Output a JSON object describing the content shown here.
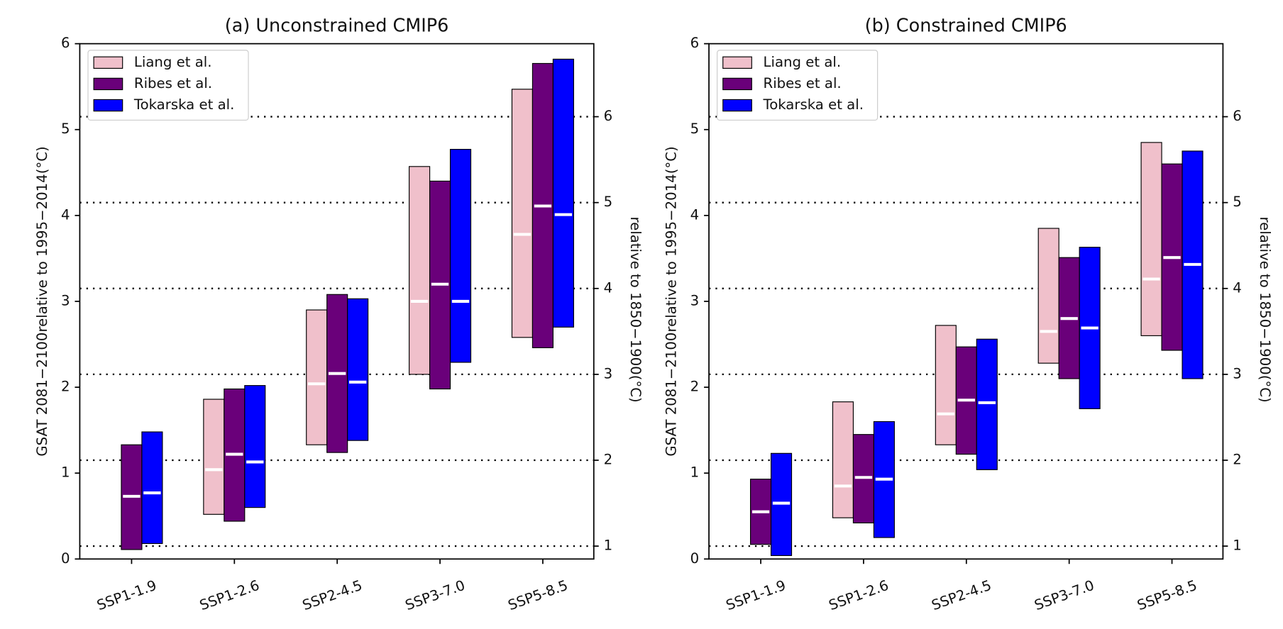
{
  "chart_data": [
    {
      "type": "range_bar",
      "title": "(a) Unconstrained CMIP6",
      "ylabel": "GSAT 2081−2100relative to 1995−2014(°C)",
      "y2label": "relative to 1850−1900(°C)",
      "categories": [
        "SSP1-1.9",
        "SSP1-2.6",
        "SSP2-4.5",
        "SSP3-7.0",
        "SSP5-8.5"
      ],
      "ylim": [
        0,
        6
      ],
      "yticks": [
        0,
        1,
        2,
        3,
        4,
        5,
        6
      ],
      "y2lim": [
        0.85,
        6.85
      ],
      "y2ticks": [
        1,
        2,
        3,
        4,
        5,
        6
      ],
      "grid": "y2",
      "legend": "upper left",
      "series": [
        {
          "name": "Liang et al.",
          "color": "#f0c0cb",
          "low": [
            null,
            0.52,
            1.33,
            2.15,
            2.58
          ],
          "high": [
            null,
            1.86,
            2.9,
            4.57,
            5.47
          ],
          "median": [
            null,
            1.04,
            2.04,
            3.0,
            3.78
          ]
        },
        {
          "name": "Ribes et al.",
          "color": "#6a007a",
          "low": [
            0.11,
            0.44,
            1.24,
            1.98,
            2.46
          ],
          "high": [
            1.33,
            1.98,
            3.08,
            4.4,
            5.77
          ],
          "median": [
            0.73,
            1.22,
            2.16,
            3.2,
            4.11
          ]
        },
        {
          "name": "Tokarska et al.",
          "color": "#0000ff",
          "low": [
            0.18,
            0.6,
            1.38,
            2.29,
            2.7
          ],
          "high": [
            1.48,
            2.02,
            3.03,
            4.77,
            5.82
          ],
          "median": [
            0.77,
            1.13,
            2.06,
            3.0,
            4.01
          ]
        }
      ]
    },
    {
      "type": "range_bar",
      "title": "(b) Constrained CMIP6",
      "ylabel": "GSAT 2081−2100relative to 1995−2014(°C)",
      "y2label": "relative to 1850−1900(°C)",
      "categories": [
        "SSP1-1.9",
        "SSP1-2.6",
        "SSP2-4.5",
        "SSP3-7.0",
        "SSP5-8.5"
      ],
      "ylim": [
        0,
        6
      ],
      "yticks": [
        0,
        1,
        2,
        3,
        4,
        5,
        6
      ],
      "y2lim": [
        0.85,
        6.85
      ],
      "y2ticks": [
        1,
        2,
        3,
        4,
        5,
        6
      ],
      "grid": "y2",
      "legend": "upper left",
      "series": [
        {
          "name": "Liang et al.",
          "color": "#f0c0cb",
          "low": [
            null,
            0.48,
            1.33,
            2.28,
            2.6
          ],
          "high": [
            null,
            1.83,
            2.72,
            3.85,
            4.85
          ],
          "median": [
            null,
            0.85,
            1.69,
            2.65,
            3.26
          ]
        },
        {
          "name": "Ribes et al.",
          "color": "#6a007a",
          "low": [
            0.17,
            0.42,
            1.22,
            2.1,
            2.43
          ],
          "high": [
            0.93,
            1.45,
            2.47,
            3.51,
            4.6
          ],
          "median": [
            0.55,
            0.95,
            1.85,
            2.8,
            3.51
          ]
        },
        {
          "name": "Tokarska et al.",
          "color": "#0000ff",
          "low": [
            0.04,
            0.25,
            1.04,
            1.75,
            2.1
          ],
          "high": [
            1.23,
            1.6,
            2.56,
            3.63,
            4.75
          ],
          "median": [
            0.65,
            0.93,
            1.82,
            2.69,
            3.43
          ]
        }
      ]
    }
  ]
}
